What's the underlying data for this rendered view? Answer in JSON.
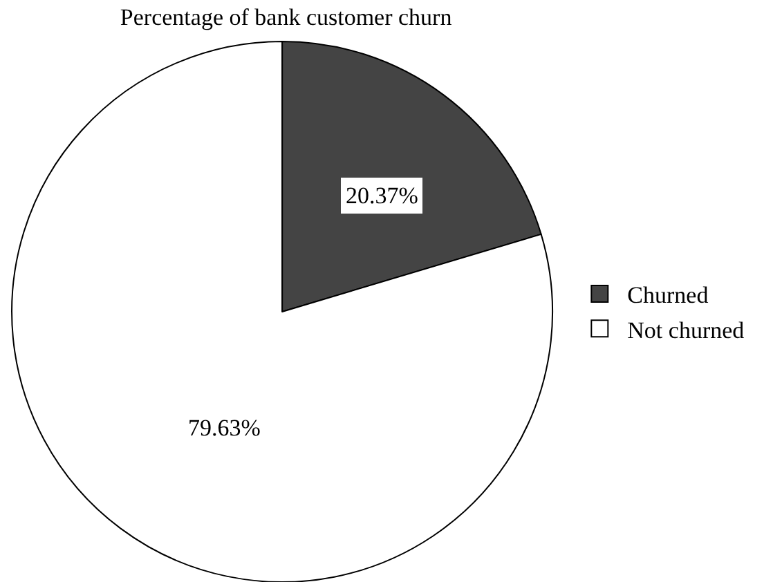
{
  "chart_data": {
    "type": "pie",
    "title": "Percentage of bank customer churn",
    "categories": [
      "Churned",
      "Not churned"
    ],
    "values": [
      20.37,
      79.63
    ],
    "colors": [
      "#444444",
      "#ffffff"
    ],
    "value_labels": [
      "20.37%",
      "79.63%"
    ],
    "legend": "right"
  }
}
